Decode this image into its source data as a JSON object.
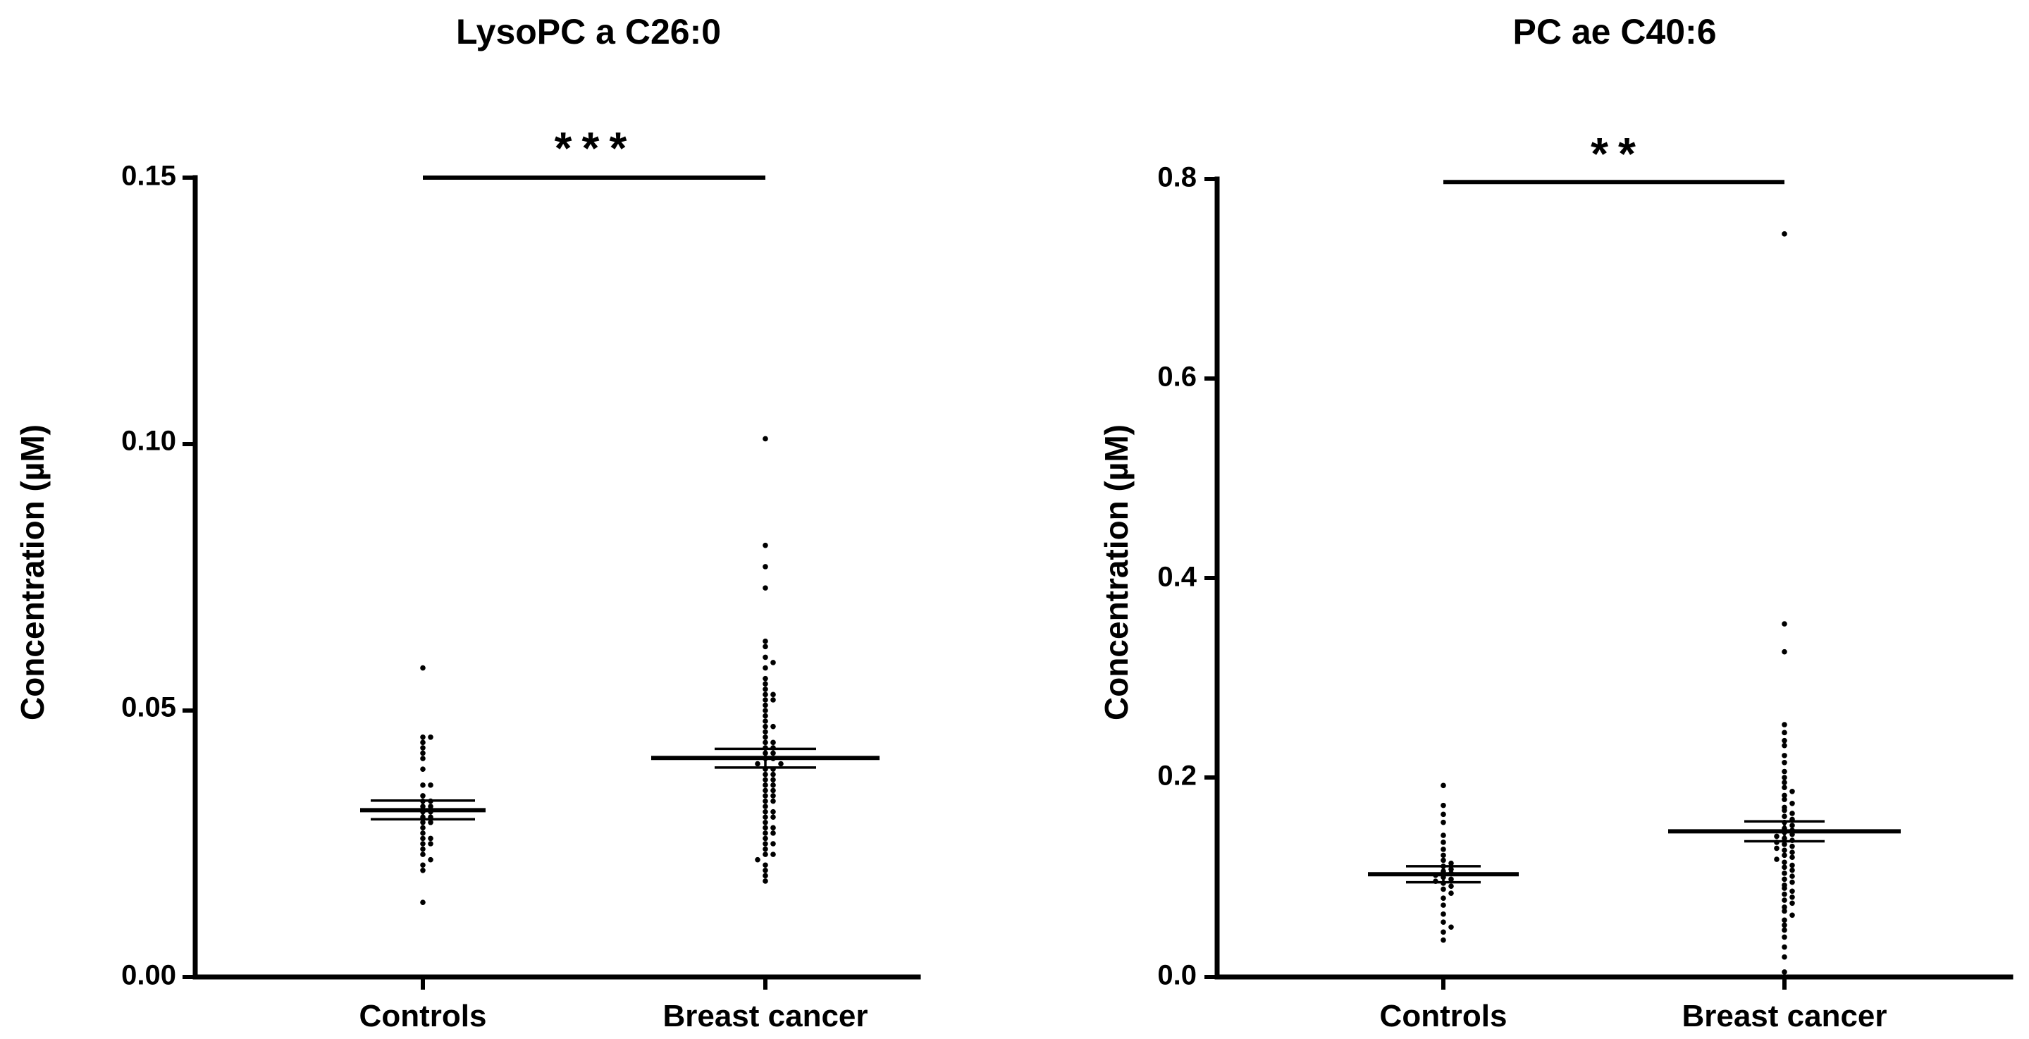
{
  "figure": {
    "background": "#ffffff",
    "ink": "#000000"
  },
  "chart_data": [
    {
      "type": "scatter",
      "title": "LysoPC a C26:0",
      "xlabel": "",
      "ylabel": "Concentration (µM)",
      "ylim": [
        0,
        0.15
      ],
      "yticks": [
        0.0,
        0.05,
        0.1,
        0.15
      ],
      "ytick_labels": [
        "0.00",
        "0.05",
        "0.10",
        "0.15"
      ],
      "categories": [
        "Controls",
        "Breast cancer"
      ],
      "significance": {
        "label": "***",
        "between": [
          "Controls",
          "Breast cancer"
        ],
        "y": 0.15
      },
      "series": [
        {
          "name": "Controls",
          "mean": 0.0313,
          "sem_low": 0.0296,
          "sem_high": 0.0331,
          "values": [
            0.058,
            0.045,
            0.045,
            0.044,
            0.043,
            0.042,
            0.041,
            0.039,
            0.036,
            0.036,
            0.034,
            0.033,
            0.033,
            0.032,
            0.032,
            0.031,
            0.031,
            0.03,
            0.03,
            0.029,
            0.029,
            0.028,
            0.027,
            0.026,
            0.026,
            0.025,
            0.025,
            0.024,
            0.023,
            0.022,
            0.021,
            0.02,
            0.014
          ]
        },
        {
          "name": "Breast cancer",
          "mean": 0.0411,
          "sem_low": 0.0393,
          "sem_high": 0.0428,
          "values": [
            0.101,
            0.081,
            0.077,
            0.073,
            0.063,
            0.062,
            0.06,
            0.059,
            0.058,
            0.056,
            0.055,
            0.054,
            0.053,
            0.053,
            0.052,
            0.052,
            0.051,
            0.05,
            0.049,
            0.048,
            0.047,
            0.047,
            0.046,
            0.045,
            0.044,
            0.044,
            0.043,
            0.043,
            0.042,
            0.042,
            0.041,
            0.041,
            0.04,
            0.04,
            0.039,
            0.039,
            0.038,
            0.038,
            0.037,
            0.037,
            0.036,
            0.036,
            0.035,
            0.035,
            0.034,
            0.034,
            0.033,
            0.033,
            0.032,
            0.031,
            0.031,
            0.03,
            0.03,
            0.029,
            0.028,
            0.028,
            0.027,
            0.027,
            0.026,
            0.025,
            0.025,
            0.024,
            0.023,
            0.023,
            0.022,
            0.021,
            0.02,
            0.019,
            0.018
          ]
        }
      ]
    },
    {
      "type": "scatter",
      "title": "PC ae C40:6",
      "xlabel": "",
      "ylabel": "Concentration (µM)",
      "ylim": [
        0,
        0.8
      ],
      "yticks": [
        0.0,
        0.2,
        0.4,
        0.6,
        0.8
      ],
      "ytick_labels": [
        "0.0",
        "0.2",
        "0.4",
        "0.6",
        "0.8"
      ],
      "categories": [
        "Controls",
        "Breast cancer"
      ],
      "significance": {
        "label": "**",
        "between": [
          "Controls",
          "Breast cancer"
        ],
        "y": 0.797
      },
      "series": [
        {
          "name": "Controls",
          "mean": 0.103,
          "sem_low": 0.095,
          "sem_high": 0.111,
          "values": [
            0.192,
            0.172,
            0.163,
            0.155,
            0.142,
            0.135,
            0.128,
            0.122,
            0.117,
            0.114,
            0.111,
            0.108,
            0.106,
            0.104,
            0.102,
            0.1,
            0.098,
            0.096,
            0.094,
            0.091,
            0.088,
            0.084,
            0.079,
            0.072,
            0.063,
            0.055,
            0.05,
            0.045,
            0.037
          ]
        },
        {
          "name": "Breast cancer",
          "mean": 0.146,
          "sem_low": 0.136,
          "sem_high": 0.156,
          "values": [
            0.745,
            0.354,
            0.326,
            0.253,
            0.245,
            0.237,
            0.232,
            0.222,
            0.215,
            0.206,
            0.2,
            0.195,
            0.19,
            0.186,
            0.182,
            0.178,
            0.174,
            0.17,
            0.167,
            0.164,
            0.161,
            0.158,
            0.155,
            0.152,
            0.149,
            0.147,
            0.145,
            0.143,
            0.141,
            0.139,
            0.137,
            0.135,
            0.133,
            0.131,
            0.129,
            0.127,
            0.125,
            0.122,
            0.12,
            0.118,
            0.115,
            0.112,
            0.11,
            0.107,
            0.104,
            0.101,
            0.098,
            0.095,
            0.092,
            0.089,
            0.086,
            0.083,
            0.08,
            0.077,
            0.074,
            0.07,
            0.066,
            0.062,
            0.057,
            0.052,
            0.047,
            0.04,
            0.03,
            0.02,
            0.005
          ]
        }
      ]
    }
  ]
}
